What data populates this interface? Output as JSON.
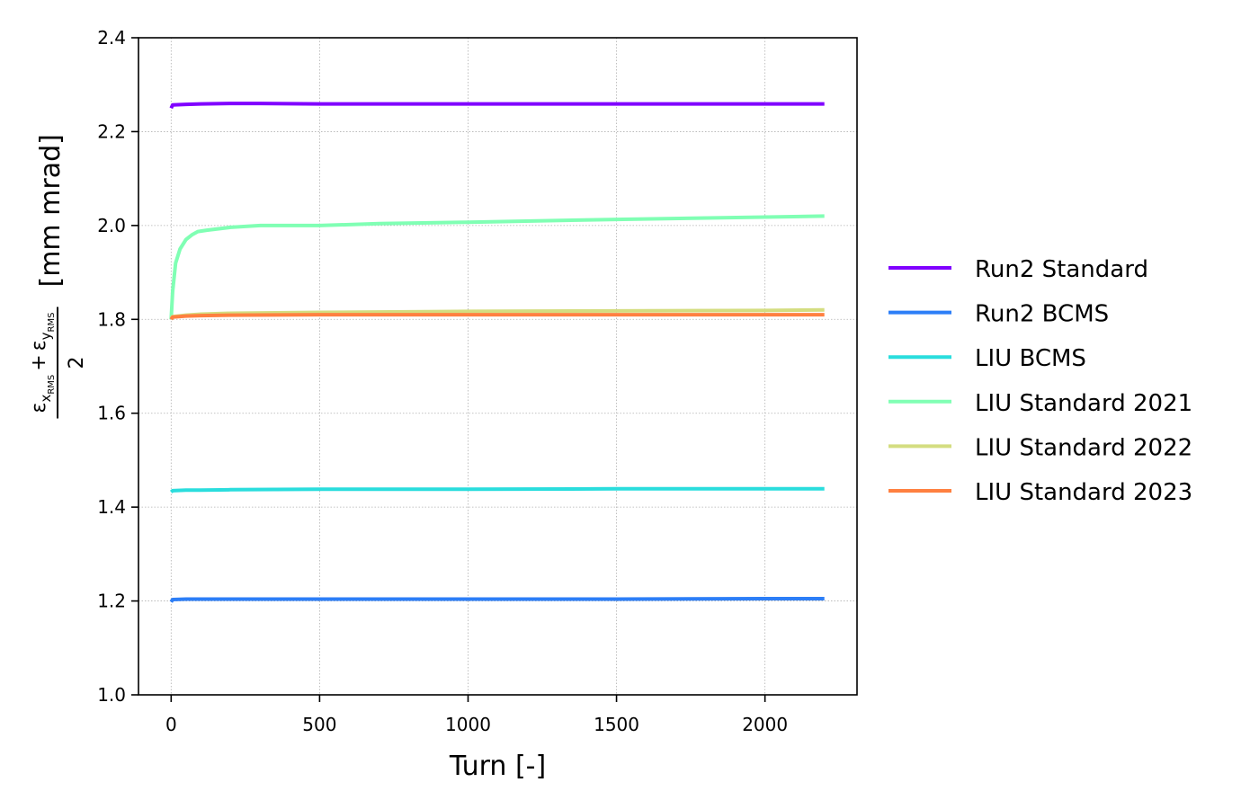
{
  "chart_data": {
    "type": "line",
    "title": "",
    "xlabel": "Turn [-]",
    "ylabel": {
      "numerator": {
        "eps": "ε",
        "sub1": "x",
        "subsub1": "RMS",
        "plus": "+",
        "sub2": "y",
        "subsub2": "RMS"
      },
      "denominator": "2",
      "unit": "[mm mrad]"
    },
    "xlim": [
      -110,
      2310
    ],
    "ylim": [
      1.0,
      2.4
    ],
    "xticks": [
      0,
      500,
      1000,
      1500,
      2000
    ],
    "xtick_labels": [
      "0",
      "500",
      "1000",
      "1500",
      "2000"
    ],
    "yticks": [
      1.0,
      1.2,
      1.4,
      1.6,
      1.8,
      2.0,
      2.2,
      2.4
    ],
    "ytick_labels": [
      "1.0",
      "1.2",
      "1.4",
      "1.6",
      "1.8",
      "2.0",
      "2.2",
      "2.4"
    ],
    "grid": true,
    "legend_position": "outside-right",
    "series": [
      {
        "name": "Run2 Standard",
        "color": "#8000ff",
        "x": [
          0,
          5,
          50,
          100,
          200,
          300,
          500,
          1000,
          1500,
          2000,
          2200
        ],
        "y": [
          2.25,
          2.257,
          2.258,
          2.259,
          2.26,
          2.26,
          2.259,
          2.259,
          2.259,
          2.259,
          2.259
        ]
      },
      {
        "name": "Run2 BCMS",
        "color": "#2c7ef7",
        "x": [
          0,
          5,
          50,
          100,
          200,
          500,
          1000,
          1500,
          2000,
          2200
        ],
        "y": [
          1.198,
          1.203,
          1.204,
          1.204,
          1.204,
          1.204,
          1.204,
          1.204,
          1.205,
          1.205
        ]
      },
      {
        "name": "LIU BCMS",
        "color": "#2adddd",
        "x": [
          0,
          5,
          50,
          100,
          200,
          500,
          1000,
          1500,
          2000,
          2200
        ],
        "y": [
          1.432,
          1.435,
          1.436,
          1.436,
          1.437,
          1.438,
          1.438,
          1.439,
          1.439,
          1.439
        ]
      },
      {
        "name": "LIU Standard 2021",
        "color": "#80ffb4",
        "x": [
          0,
          5,
          15,
          30,
          50,
          70,
          90,
          120,
          200,
          300,
          500,
          700,
          1000,
          1500,
          2000,
          2200
        ],
        "y": [
          1.8,
          1.86,
          1.92,
          1.95,
          1.97,
          1.98,
          1.987,
          1.99,
          1.996,
          2.0,
          2.0,
          2.004,
          2.007,
          2.013,
          2.018,
          2.02
        ]
      },
      {
        "name": "LIU Standard 2022",
        "color": "#d4dd80",
        "x": [
          0,
          5,
          50,
          100,
          200,
          500,
          1000,
          1500,
          2000,
          2200
        ],
        "y": [
          1.802,
          1.806,
          1.809,
          1.811,
          1.813,
          1.815,
          1.817,
          1.818,
          1.819,
          1.82
        ]
      },
      {
        "name": "LIU Standard 2023",
        "color": "#ff8040",
        "x": [
          0,
          5,
          50,
          100,
          200,
          500,
          1000,
          1500,
          2000,
          2200
        ],
        "y": [
          1.8,
          1.805,
          1.807,
          1.808,
          1.809,
          1.81,
          1.81,
          1.81,
          1.81,
          1.81
        ]
      }
    ]
  }
}
